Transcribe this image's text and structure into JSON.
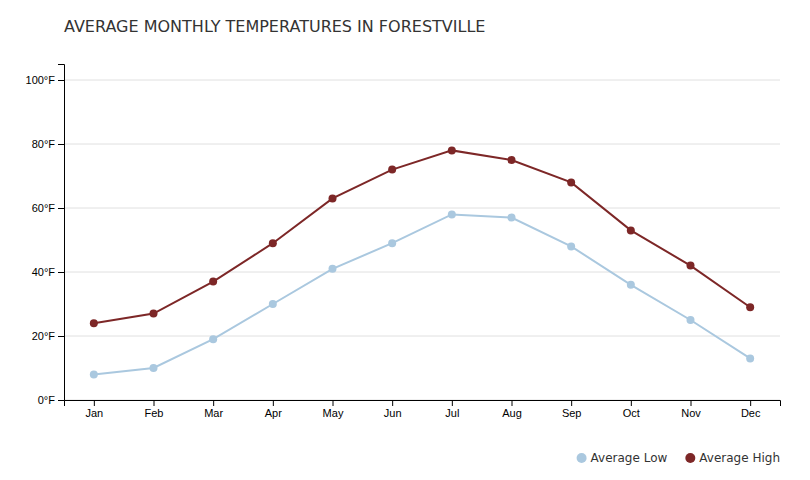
{
  "chart_data": {
    "type": "line",
    "title": "AVERAGE MONTHLY TEMPERATURES IN FORESTVILLE",
    "categories": [
      "Jan",
      "Feb",
      "Mar",
      "Apr",
      "May",
      "Jun",
      "Jul",
      "Aug",
      "Sep",
      "Oct",
      "Nov",
      "Dec"
    ],
    "series": [
      {
        "name": "Average Low",
        "color": "#aac8df",
        "values": [
          8,
          10,
          19,
          30,
          41,
          49,
          58,
          57,
          48,
          36,
          25,
          13
        ]
      },
      {
        "name": "Average High",
        "color": "#7d2727",
        "values": [
          24,
          27,
          37,
          49,
          63,
          72,
          78,
          75,
          68,
          53,
          42,
          29
        ]
      }
    ],
    "ylim": [
      0,
      105
    ],
    "yticks": [
      {
        "value": 0,
        "label": "0°F"
      },
      {
        "value": 20,
        "label": "20°F"
      },
      {
        "value": 40,
        "label": "40°F"
      },
      {
        "value": 60,
        "label": "60°F"
      },
      {
        "value": 80,
        "label": "80°F"
      },
      {
        "value": 100,
        "label": "100°F"
      }
    ],
    "grid": true,
    "legend": "bottom-right",
    "marker": "circle"
  }
}
